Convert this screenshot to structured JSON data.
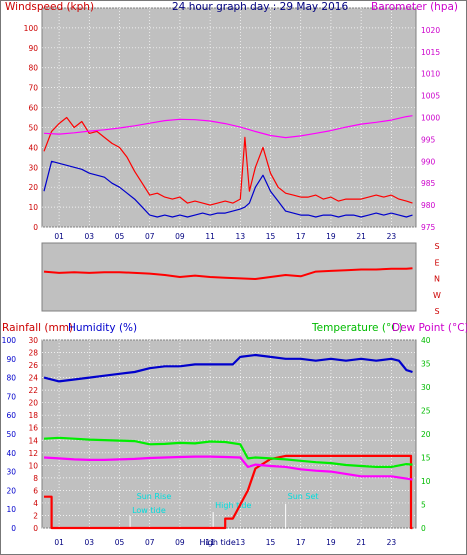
{
  "chart_data": [
    {
      "id": "wind-baro",
      "type": "line",
      "title": "24 hour graph day : 29 May 2016",
      "ylabel_left": "Windspeed (kph)",
      "ylabel_right": "Barometer (hpa)",
      "ylim": [
        0,
        110
      ],
      "yticks": [
        0,
        10,
        20,
        30,
        40,
        50,
        60,
        70,
        80,
        90,
        100,
        110
      ],
      "ylim_right": [
        975,
        1025
      ],
      "yticks_right": [
        975,
        980,
        985,
        990,
        995,
        1000,
        1005,
        1010,
        1015,
        1020,
        1025
      ],
      "xlim": [
        0,
        24.5
      ],
      "xticks": [
        "01",
        "03",
        "05",
        "07",
        "09",
        "11",
        "13",
        "15",
        "17",
        "19",
        "21",
        "23"
      ],
      "grid": true,
      "series": [
        {
          "axis": "left",
          "color": "#ff0000",
          "x": [
            0,
            0.5,
            1,
            1.5,
            2,
            2.5,
            3,
            3.5,
            4,
            4.5,
            5,
            5.5,
            6,
            6.5,
            7,
            7.5,
            8,
            8.5,
            9,
            9.5,
            10,
            10.5,
            11,
            11.5,
            12,
            12.5,
            13,
            13.3,
            13.6,
            14,
            14.5,
            15,
            15.5,
            16,
            16.5,
            17,
            17.5,
            18,
            18.5,
            19,
            19.5,
            20,
            20.5,
            21,
            21.5,
            22,
            22.5,
            23,
            23.5,
            24,
            24.4
          ],
          "values": [
            38,
            48,
            52,
            55,
            50,
            53,
            47,
            48,
            45,
            42,
            40,
            35,
            28,
            22,
            16,
            17,
            15,
            14,
            15,
            12,
            13,
            12,
            11,
            12,
            13,
            12,
            14,
            45,
            18,
            30,
            40,
            27,
            20,
            17,
            16,
            15,
            15,
            16,
            14,
            15,
            13,
            14,
            14,
            14,
            15,
            16,
            15,
            16,
            14,
            13,
            12
          ]
        },
        {
          "axis": "left",
          "color": "#0000cc",
          "x": [
            0,
            0.5,
            1,
            1.5,
            2,
            2.5,
            3,
            3.5,
            4,
            4.5,
            5,
            5.5,
            6,
            6.5,
            7,
            7.5,
            8,
            8.5,
            9,
            9.5,
            10,
            10.5,
            11,
            11.5,
            12,
            12.5,
            13,
            13.3,
            13.6,
            14,
            14.5,
            15,
            15.5,
            16,
            16.5,
            17,
            17.5,
            18,
            18.5,
            19,
            19.5,
            20,
            20.5,
            21,
            21.5,
            22,
            22.5,
            23,
            23.5,
            24,
            24.4
          ],
          "values": [
            18,
            33,
            32,
            31,
            30,
            29,
            27,
            26,
            25,
            22,
            20,
            17,
            14,
            10,
            6,
            5,
            6,
            5,
            6,
            5,
            6,
            7,
            6,
            7,
            7,
            8,
            9,
            10,
            12,
            20,
            26,
            18,
            13,
            8,
            7,
            6,
            6,
            5,
            6,
            6,
            5,
            6,
            6,
            5,
            6,
            7,
            6,
            7,
            6,
            5,
            6
          ]
        },
        {
          "axis": "right",
          "color": "#ff00ff",
          "x": [
            0,
            1,
            2,
            3,
            4,
            5,
            6,
            7,
            8,
            9,
            10,
            11,
            12,
            13,
            14,
            15,
            16,
            17,
            18,
            19,
            20,
            21,
            22,
            23,
            24,
            24.4
          ],
          "values": [
            996.4,
            996.2,
            996.5,
            996.9,
            997.2,
            997.6,
            998.1,
            998.7,
            999.3,
            999.6,
            999.5,
            999.2,
            998.6,
            997.8,
            996.8,
            995.9,
            995.4,
            995.8,
            996.4,
            997.0,
            997.8,
            998.5,
            998.9,
            999.4,
            1000.2,
            1000.4
          ]
        }
      ]
    },
    {
      "id": "wind-direction",
      "type": "line",
      "ylabels": [
        "S",
        "E",
        "N",
        "W",
        "S"
      ],
      "xlim": [
        0,
        24.5
      ],
      "series": [
        {
          "color": "#ff0000",
          "x": [
            0,
            1,
            2,
            3,
            4,
            5,
            6,
            7,
            8,
            9,
            10,
            11,
            12,
            13,
            14,
            15,
            16,
            17,
            18,
            19,
            20,
            21,
            22,
            23,
            24,
            24.4
          ],
          "values": [
            0.58,
            0.56,
            0.57,
            0.56,
            0.57,
            0.57,
            0.56,
            0.55,
            0.53,
            0.5,
            0.52,
            0.5,
            0.49,
            0.48,
            0.47,
            0.5,
            0.53,
            0.51,
            0.58,
            0.59,
            0.6,
            0.61,
            0.61,
            0.62,
            0.62,
            0.63
          ]
        }
      ]
    },
    {
      "id": "rain-hum-temp",
      "type": "line",
      "ylabel_left": "Rainfall (mm)",
      "ylabel_left2": "Humidity (%)",
      "ylabel_right": "Temperature (°C)",
      "ylabel_right2": "Dew Point (°C)",
      "ylim_rain": [
        0,
        30
      ],
      "yticks_rain": [
        0,
        2,
        4,
        6,
        8,
        10,
        12,
        14,
        16,
        18,
        20,
        22,
        24,
        26,
        28,
        30
      ],
      "ylim_humidity": [
        0,
        100
      ],
      "yticks_humidity": [
        0,
        10,
        20,
        30,
        40,
        50,
        60,
        70,
        80,
        90,
        100
      ],
      "ylim_temp": [
        0,
        40
      ],
      "yticks_temp": [
        0,
        5,
        10,
        15,
        20,
        25,
        30,
        35,
        40
      ],
      "xlim": [
        0,
        24.5
      ],
      "xticks": [
        "01",
        "03",
        "05",
        "07",
        "09",
        "11",
        "13",
        "15",
        "17",
        "19",
        "21",
        "23"
      ],
      "grid": true,
      "annotations": [
        "Sun Rise",
        "Low tide",
        "Sun Set",
        "High tide",
        "High tide"
      ],
      "series": [
        {
          "axis": "humidity",
          "color": "#0000cc",
          "x": [
            0,
            1,
            2,
            3,
            4,
            5,
            6,
            7,
            8,
            9,
            10,
            11,
            12,
            12.5,
            13,
            14,
            15,
            16,
            17,
            18,
            19,
            20,
            21,
            22,
            23,
            23.5,
            24,
            24.4
          ],
          "values": [
            80,
            78,
            79,
            80,
            81,
            82,
            83,
            85,
            86,
            86,
            87,
            87,
            87,
            87,
            91,
            92,
            91,
            90,
            90,
            89,
            90,
            89,
            90,
            89,
            90,
            89,
            84,
            83
          ]
        },
        {
          "axis": "rain",
          "color": "#ff0000",
          "x": [
            0,
            0.5,
            0.5,
            12,
            12,
            12.5,
            13.5,
            14,
            15,
            16,
            17,
            18,
            19,
            20,
            21,
            22,
            23,
            24,
            24.3,
            24.3,
            24.4
          ],
          "values": [
            5.0,
            5.0,
            0,
            0,
            1.5,
            1.5,
            6,
            9.5,
            11,
            11.5,
            11.5,
            11.5,
            11.5,
            11.5,
            11.5,
            11.5,
            11.5,
            11.5,
            11.5,
            0,
            0
          ]
        },
        {
          "axis": "temp",
          "color": "#00ee00",
          "x": [
            0,
            1,
            2,
            3,
            4,
            5,
            6,
            7,
            8,
            9,
            10,
            11,
            12,
            13,
            13.5,
            14,
            15,
            16,
            17,
            18,
            19,
            20,
            21,
            22,
            23,
            24,
            24.4
          ],
          "values": [
            19.0,
            19.2,
            19.0,
            18.8,
            18.7,
            18.6,
            18.5,
            17.8,
            17.9,
            18.1,
            18.0,
            18.4,
            18.3,
            17.8,
            14.8,
            15.0,
            14.8,
            14.6,
            14.3,
            14.0,
            13.8,
            13.4,
            13.2,
            13.0,
            13.0,
            13.6,
            13.5
          ]
        },
        {
          "axis": "temp",
          "color": "#ff00ff",
          "x": [
            0,
            1,
            2,
            3,
            4,
            5,
            6,
            7,
            8,
            9,
            10,
            11,
            12,
            13,
            13.5,
            14,
            15,
            16,
            17,
            18,
            19,
            20,
            21,
            22,
            23,
            24,
            24.4
          ],
          "values": [
            15.0,
            14.8,
            14.6,
            14.5,
            14.5,
            14.6,
            14.7,
            14.9,
            15.0,
            15.1,
            15.2,
            15.2,
            15.1,
            15.0,
            13.0,
            13.5,
            13.2,
            13.0,
            12.5,
            12.2,
            12.0,
            11.5,
            11.0,
            11.0,
            11.0,
            10.5,
            10.3
          ]
        }
      ]
    }
  ]
}
